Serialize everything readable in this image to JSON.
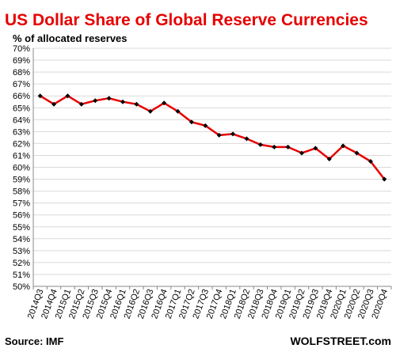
{
  "chart_data": {
    "type": "line",
    "title": "US Dollar Share of Global  Reserve Currencies",
    "subtitle": "% of allocated reserves",
    "xlabel": "",
    "ylabel": "",
    "ylim": [
      50,
      70
    ],
    "yticks": [
      "50%",
      "51%",
      "52%",
      "53%",
      "54%",
      "55%",
      "56%",
      "57%",
      "58%",
      "59%",
      "60%",
      "61%",
      "62%",
      "63%",
      "64%",
      "65%",
      "66%",
      "67%",
      "68%",
      "69%",
      "70%"
    ],
    "grid": true,
    "legend": "none",
    "categories": [
      "2014Q3",
      "2014Q4",
      "2015Q1",
      "2015Q2",
      "2015Q3",
      "2015Q4",
      "2016Q1",
      "2016Q2",
      "2016Q3",
      "2016Q4",
      "2017Q1",
      "2017Q2",
      "2017Q3",
      "2017Q4",
      "2018Q1",
      "2018Q2",
      "2018Q3",
      "2018Q4",
      "2019Q1",
      "2019Q2",
      "2019Q3",
      "2019Q4",
      "2020Q1",
      "2020Q2",
      "2020Q3",
      "2020Q4"
    ],
    "series": [
      {
        "values": [
          66.0,
          65.3,
          66.0,
          65.3,
          65.6,
          65.8,
          65.5,
          65.3,
          64.7,
          65.4,
          64.7,
          63.8,
          63.5,
          62.7,
          62.8,
          62.4,
          61.9,
          61.7,
          61.7,
          61.2,
          61.6,
          60.7,
          61.8,
          61.2,
          60.5,
          59.0
        ]
      }
    ],
    "source": "Source: IMF",
    "credit": "WOLFSTREET.com",
    "colors": {
      "title": "#e60000",
      "line": "#e60000",
      "marker": "#000000",
      "grid": "#d9d9d9",
      "axis": "#888888"
    }
  }
}
